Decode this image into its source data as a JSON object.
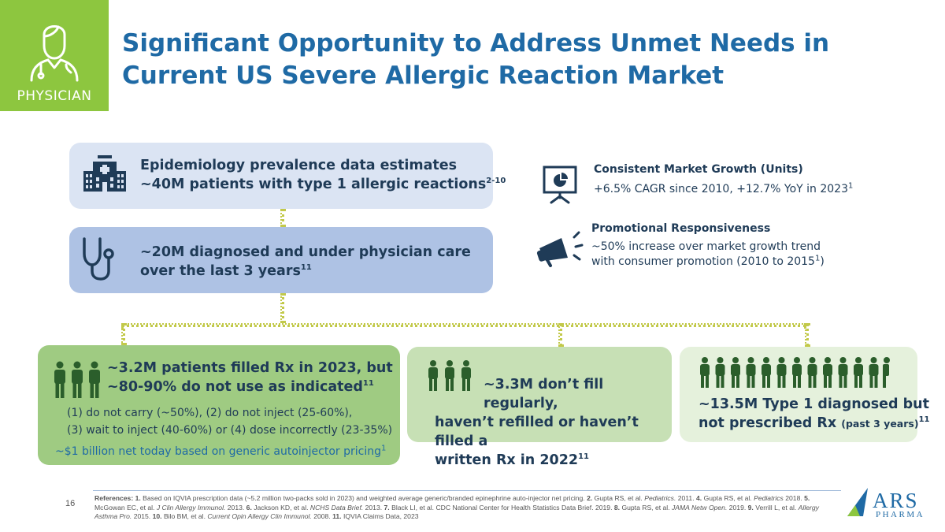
{
  "badge": {
    "label": "PHYSICIAN",
    "icon": "physician-icon"
  },
  "title": "Significant Opportunity to Address Unmet Needs in Current US Severe Allergic Reaction Market",
  "epidemiology": {
    "line1": "Epidemiology prevalence data estimates",
    "line2": "~40M patients with type 1 allergic reactions",
    "sup": "2-10",
    "icon": "hospital-icon"
  },
  "diagnosed": {
    "line1": "~20M diagnosed and under physician care",
    "line2": "over the last 3 years",
    "sup": "11",
    "icon": "stethoscope-icon"
  },
  "market_growth": {
    "heading": "Consistent Market Growth (Units)",
    "text": "+6.5% CAGR since 2010, +12.7% YoY in 2023",
    "sup": "1",
    "icon": "presentation-chart-icon"
  },
  "promotional": {
    "heading": "Promotional Responsiveness",
    "line1": "~50% increase over market growth trend",
    "line2a": "with consumer promotion (2010 to 2015",
    "sup": "1",
    "line2b": ")",
    "icon": "megaphone-icon"
  },
  "filled": {
    "line1": "~3.2M patients filled Rx in 2023, but",
    "line2": "~80-90% do not use as indicated",
    "sup": "11",
    "sub1": "(1) do not carry (~50%), (2) do not inject (25-60%),",
    "sub2": "(3) wait to inject (40-60%) or (4) dose incorrectly (23-35%)",
    "pricing": "~$1 billion net today based on generic autoinjector pricing",
    "pricing_sup": "1",
    "icon": "people-icon"
  },
  "not_fill": {
    "line1": "~3.3M don’t fill regularly,",
    "line2": "haven’t refilled or haven’t filled a",
    "line3": "written Rx in 2022",
    "sup": "11",
    "icon": "people-icon"
  },
  "not_prescribed": {
    "line1": "~13.5M Type 1 diagnosed but",
    "line2": "not prescribed Rx",
    "small": "(past 3 years)",
    "sup": "11",
    "icon": "people-icon"
  },
  "footer": {
    "page_number": "16",
    "refs": {
      "label": "References:",
      "n1": "1.",
      "t1": "Based on IQVIA prescription data (~5.2 million two-packs sold in 2023) and weighted average generic/branded epinephrine auto-injector net pricing.",
      "n2": "2.",
      "t2": "Gupta RS, et al.",
      "j2": "Pediatrics.",
      "y2": "2011.",
      "n4": "4.",
      "t4": "Gupta RS, et al.",
      "j4": "Pediatrics",
      "y4": "2018.",
      "n5": "5.",
      "t5": "McGowan EC, et al.",
      "j5": "J Clin Allergy Immunol.",
      "y5": "2013.",
      "n6": "6.",
      "t6": "Jackson KD, et al.",
      "j6": "NCHS Data Brief.",
      "y6": "2013.",
      "n7": "7.",
      "t7": "Black LI, et al. CDC National Center for Health Statistics Data Brief. 2019.",
      "n8": "8.",
      "t8": "Gupta RS, et al.",
      "j8": "JAMA Netw Open.",
      "y8": "2019.",
      "n9": "9.",
      "t9": "Verrill L, et al.",
      "j9": "Allergy Asthma Pro.",
      "y9": "2015.",
      "n10": "10.",
      "t10": "Bilo BM, et al.",
      "j10": "Current Opin Allergy Clin Immunol.",
      "y10": "2008.",
      "n11": "11.",
      "t11": "IQVIA Claims Data, 2023"
    }
  },
  "logo": {
    "word": "ARS",
    "sub": "PHARMA",
    "icon": "ars-pharma-logo"
  },
  "colors": {
    "green": "#8dc63f",
    "title_blue": "#1f6aa5",
    "navy": "#1f3b57",
    "connector": "#c2c94a"
  }
}
